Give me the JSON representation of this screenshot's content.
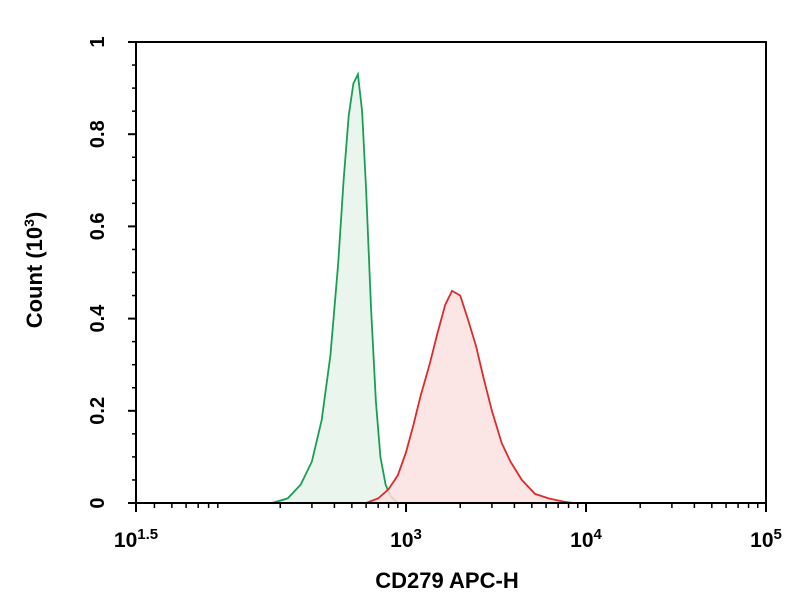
{
  "chart_data": {
    "type": "area",
    "xlabel": "CD279 APC-H",
    "ylabel_prefix": "Count (10",
    "ylabel_sup": "3",
    "ylabel_suffix": ")",
    "x_scale": "log",
    "xlim": [
      31.6,
      100000
    ],
    "ylim": [
      0,
      1
    ],
    "x_ticks": [
      {
        "base": "10",
        "exp": "1.5",
        "value": 31.6
      },
      {
        "base": "10",
        "exp": "3",
        "value": 1000
      },
      {
        "base": "10",
        "exp": "4",
        "value": 10000
      },
      {
        "base": "10",
        "exp": "5",
        "value": 100000
      }
    ],
    "y_ticks": [
      "0",
      "0.2",
      "0.4",
      "0.6",
      "0.8",
      "1"
    ],
    "y_tick_values": [
      0,
      0.2,
      0.4,
      0.6,
      0.8,
      1
    ],
    "grid": false,
    "series": [
      {
        "color": "#1a9e55",
        "fill": "#e6f4ea",
        "x": [
          180,
          220,
          260,
          300,
          340,
          380,
          420,
          450,
          480,
          510,
          540,
          570,
          600,
          640,
          680,
          720,
          770,
          820,
          900
        ],
        "y": [
          0.0,
          0.01,
          0.04,
          0.09,
          0.18,
          0.32,
          0.52,
          0.7,
          0.84,
          0.91,
          0.93,
          0.85,
          0.68,
          0.42,
          0.22,
          0.1,
          0.04,
          0.015,
          0.0
        ]
      },
      {
        "color": "#dd2a2a",
        "fill": "#fbe0e0",
        "x": [
          600,
          700,
          800,
          900,
          1000,
          1100,
          1200,
          1350,
          1500,
          1650,
          1800,
          2000,
          2200,
          2450,
          2700,
          3000,
          3400,
          3800,
          4400,
          5200,
          6200,
          7500,
          8500
        ],
        "y": [
          0.0,
          0.01,
          0.03,
          0.06,
          0.11,
          0.17,
          0.23,
          0.3,
          0.37,
          0.43,
          0.46,
          0.45,
          0.4,
          0.34,
          0.27,
          0.2,
          0.13,
          0.09,
          0.05,
          0.02,
          0.01,
          0.003,
          0.0
        ]
      }
    ]
  }
}
